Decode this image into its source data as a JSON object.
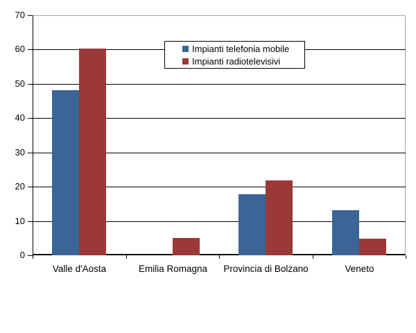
{
  "chart_data": {
    "type": "bar",
    "title": "",
    "xlabel": "",
    "ylabel": "",
    "categories": [
      "Valle d'Aosta",
      "Emilia Romagna",
      "Provincia di Bolzano",
      "Veneto"
    ],
    "series": [
      {
        "name": "Impianti telefonia mobile",
        "color": "#3A6596",
        "values": [
          48.2,
          0,
          17.9,
          13.1
        ]
      },
      {
        "name": "Impianti radiotelevisivi",
        "color": "#9A3938",
        "values": [
          60.3,
          5.0,
          21.9,
          4.8
        ]
      }
    ],
    "ylim": [
      0,
      70
    ],
    "ytick_interval": 10,
    "yticks": [
      0,
      10,
      20,
      30,
      40,
      50,
      60,
      70
    ],
    "grid": "horizontal-on",
    "legend_position": "inside-top-center",
    "legend_border": true
  },
  "colors": {
    "series_mobile": "#3A6596",
    "series_radio": "#9A3938",
    "gridline": "#000000",
    "axis": "#000000",
    "plot_border": "#A6A6A6",
    "legend_border": "#000000",
    "background": "#FFFFFF",
    "text": "#000000"
  }
}
